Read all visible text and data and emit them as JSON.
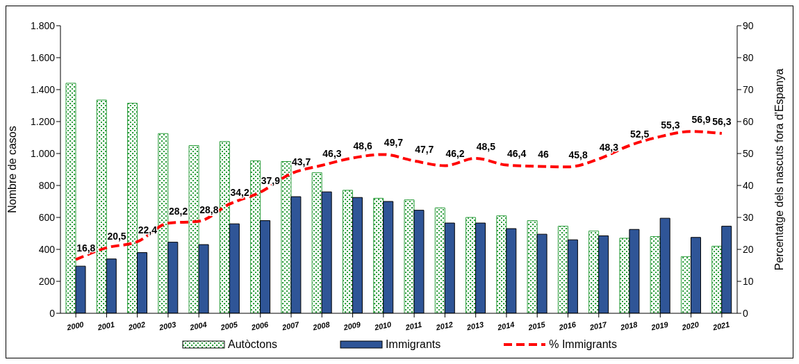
{
  "chart_data": {
    "type": "bar",
    "categories": [
      "2000",
      "2001",
      "2002",
      "2003",
      "2004",
      "2005",
      "2006",
      "2007",
      "2008",
      "2009",
      "2010",
      "2011",
      "2012",
      "2013",
      "2014",
      "2015",
      "2016",
      "2017",
      "2018",
      "2019",
      "2020",
      "2021"
    ],
    "ylabel": "Nombre de casos",
    "y2label": "Percentatge dels nascuts fora d'Espanya",
    "ylim": [
      0,
      1800
    ],
    "yticks": [
      0,
      200,
      400,
      600,
      800,
      {
        "value": 1000,
        "label": "1.000"
      },
      {
        "value": 1200,
        "label": "1.200"
      },
      {
        "value": 1400,
        "label": "1.400"
      },
      {
        "value": 1600,
        "label": "1.600"
      },
      {
        "value": 1800,
        "label": "1.800"
      }
    ],
    "y2lim": [
      0,
      90
    ],
    "y2ticks": [
      0,
      10,
      20,
      30,
      40,
      50,
      60,
      70,
      80,
      90
    ],
    "legend": "bottom",
    "grid": false,
    "series": [
      {
        "name": "Autòctons",
        "color": "#2e9e3e",
        "values": [
          1440,
          1335,
          1315,
          1125,
          1050,
          1075,
          955,
          950,
          880,
          770,
          720,
          710,
          660,
          600,
          610,
          580,
          545,
          515,
          470,
          480,
          355,
          420
        ]
      },
      {
        "name": "Immigrants",
        "color": "#2f5597",
        "values": [
          295,
          340,
          380,
          445,
          430,
          560,
          580,
          730,
          760,
          725,
          700,
          645,
          565,
          565,
          530,
          495,
          460,
          485,
          525,
          595,
          475,
          545
        ]
      },
      {
        "name": "% Immigrants",
        "type": "line",
        "axis": "y2",
        "color": "#ff0000",
        "line_style": "dashed",
        "marker": "none",
        "values": [
          16.8,
          20.5,
          22.4,
          28.2,
          28.8,
          34.2,
          37.9,
          43.7,
          46.3,
          48.6,
          49.7,
          47.7,
          46.2,
          48.5,
          46.4,
          46,
          45.8,
          48.3,
          52.5,
          55.3,
          56.9,
          56.3
        ],
        "value_labels": [
          "16,8",
          "20,5",
          "22,4",
          "28,2",
          "28,8",
          "34,2",
          "37,9",
          "43,7",
          "46,3",
          "48,6",
          "49,7",
          "47,7",
          "46,2",
          "48,5",
          "46,4",
          "46",
          "45,8",
          "48,3",
          "52,5",
          "55,3",
          "56,9",
          "56,3"
        ]
      }
    ]
  }
}
